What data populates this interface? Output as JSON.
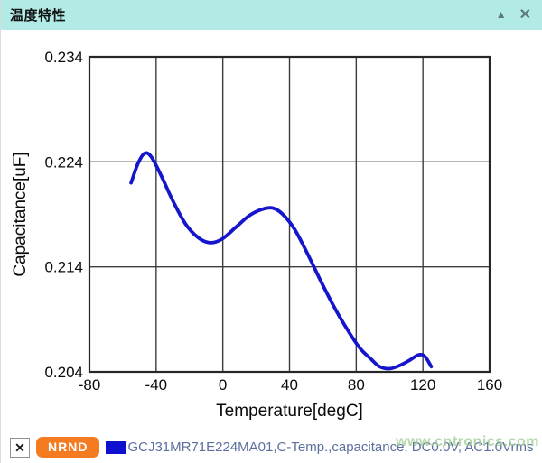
{
  "header": {
    "title": "温度特性",
    "collapse_icon": "▲",
    "close_icon": "✕"
  },
  "legend": {
    "remove_symbol": "✕",
    "badge_label": "NRND"
  },
  "watermark": {
    "text": "www.cntronics.com"
  },
  "colors": {
    "header_bg": "#b2ebe6",
    "curve": "#1515cc",
    "grid": "#3c3c3c",
    "nrnd_badge": "#f47b20",
    "legend_text": "#5c6fa0",
    "watermark": "#9ccb92"
  },
  "chart_data": {
    "type": "line",
    "title": "",
    "xlabel": "Temperature[degC]",
    "ylabel": "Capacitance[uF]",
    "xlim": [
      -80,
      160
    ],
    "ylim": [
      0.204,
      0.234
    ],
    "xticks": [
      -80,
      -40,
      0,
      40,
      80,
      120,
      160
    ],
    "yticks": [
      0.204,
      0.214,
      0.224,
      0.234
    ],
    "ytick_decimals": 3,
    "grid": true,
    "legend_position": "bottom",
    "series": [
      {
        "name": "GCJ31MR71E224MA01,C-Temp.,capacitance, DC0.0V, AC1.0Vrms",
        "color": "#1515cc",
        "points": [
          [
            -55,
            0.222
          ],
          [
            -51,
            0.2238
          ],
          [
            -47,
            0.2248
          ],
          [
            -43,
            0.2245
          ],
          [
            -37,
            0.2227
          ],
          [
            -30,
            0.2203
          ],
          [
            -22,
            0.218
          ],
          [
            -14,
            0.2167
          ],
          [
            -7,
            0.2163
          ],
          [
            0,
            0.2167
          ],
          [
            8,
            0.2178
          ],
          [
            16,
            0.2189
          ],
          [
            24,
            0.2195
          ],
          [
            30,
            0.2196
          ],
          [
            36,
            0.219
          ],
          [
            43,
            0.2176
          ],
          [
            50,
            0.2155
          ],
          [
            58,
            0.2129
          ],
          [
            66,
            0.2104
          ],
          [
            74,
            0.2082
          ],
          [
            82,
            0.2063
          ],
          [
            89,
            0.2052
          ],
          [
            94,
            0.2045
          ],
          [
            100,
            0.2043
          ],
          [
            106,
            0.2046
          ],
          [
            112,
            0.2051
          ],
          [
            117,
            0.2056
          ],
          [
            121,
            0.2055
          ],
          [
            125,
            0.2045
          ]
        ]
      }
    ]
  }
}
